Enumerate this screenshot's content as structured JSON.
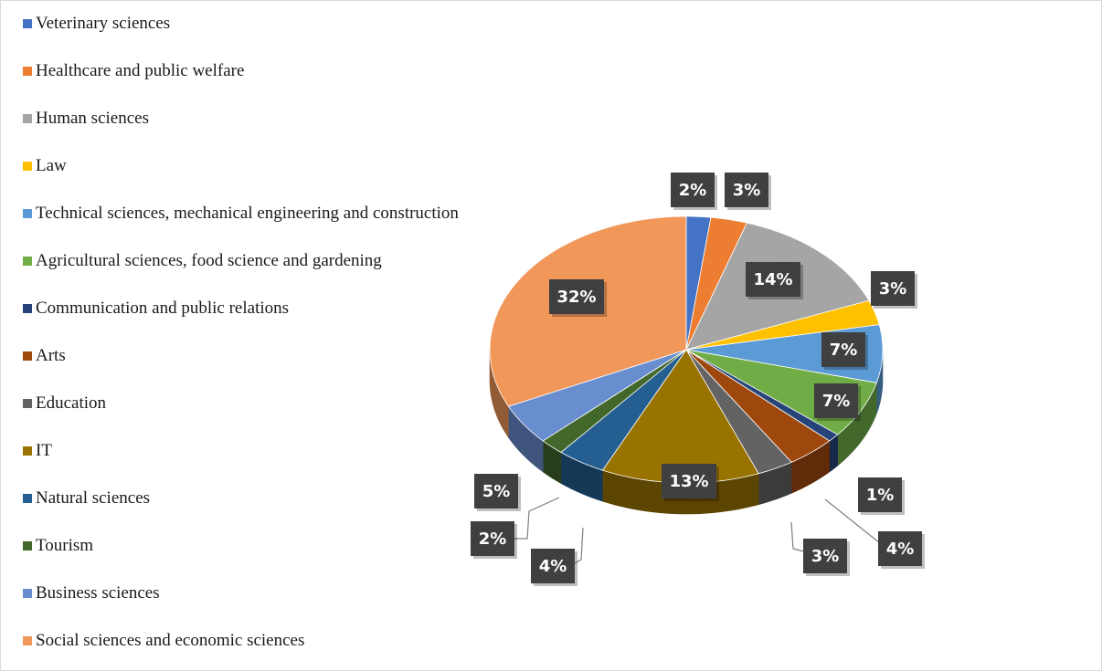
{
  "chart_data": {
    "type": "pie",
    "title": "",
    "categories": [
      "Veterinary sciences",
      "Healthcare and public welfare",
      "Human sciences",
      "Law",
      "Technical sciences, mechanical engineering and construction",
      "Agricultural sciences, food science and gardening",
      "Communication and public relations",
      "Arts",
      "Education",
      "IT",
      "Natural sciences",
      "Tourism",
      "Business sciences",
      "Social sciences and economic sciences"
    ],
    "values": [
      2,
      3,
      14,
      3,
      7,
      7,
      1,
      4,
      3,
      13,
      4,
      2,
      5,
      32
    ],
    "labels": [
      "2%",
      "3%",
      "14%",
      "3%",
      "7%",
      "7%",
      "1%",
      "4%",
      "3%",
      "13%",
      "4%",
      "2%",
      "5%",
      "32%"
    ],
    "colors": [
      "#4472c4",
      "#ed7d31",
      "#a5a5a5",
      "#ffc000",
      "#5b9bd5",
      "#70ad47",
      "#264478",
      "#9e480e",
      "#636363",
      "#997300",
      "#255e91",
      "#43682b",
      "#698ed0",
      "#f1975a"
    ],
    "legend_position": "left",
    "style": "3d-exploded-view"
  }
}
